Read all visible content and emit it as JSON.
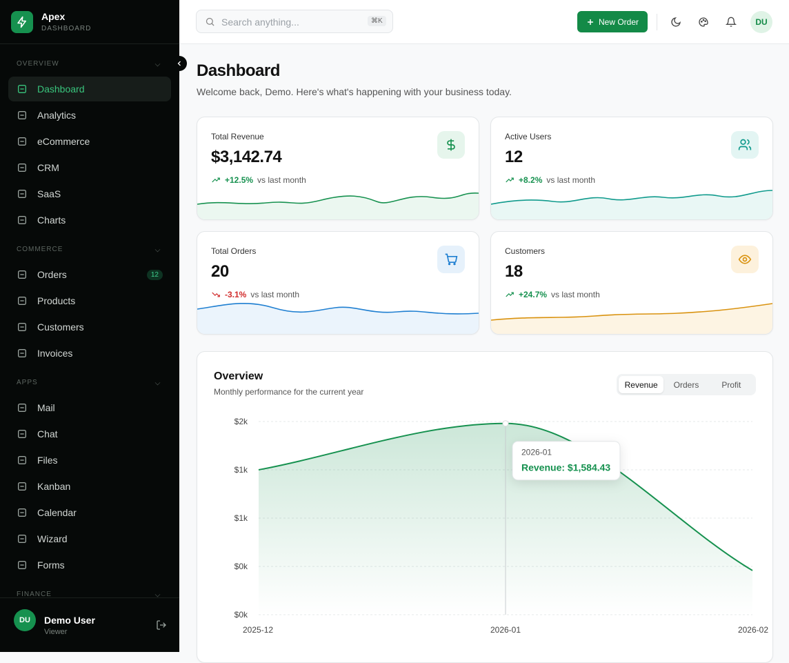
{
  "sidebar": {
    "brand": {
      "name": "Apex",
      "subtitle": "DASHBOARD"
    },
    "sections": [
      {
        "title": "OVERVIEW",
        "items": [
          {
            "label": "Dashboard"
          },
          {
            "label": "Analytics"
          },
          {
            "label": "eCommerce"
          },
          {
            "label": "CRM"
          },
          {
            "label": "SaaS"
          },
          {
            "label": "Charts"
          }
        ]
      },
      {
        "title": "COMMERCE",
        "items": [
          {
            "label": "Orders",
            "badge": "12"
          },
          {
            "label": "Products"
          },
          {
            "label": "Customers"
          },
          {
            "label": "Invoices"
          }
        ]
      },
      {
        "title": "APPS",
        "items": [
          {
            "label": "Mail"
          },
          {
            "label": "Chat"
          },
          {
            "label": "Files"
          },
          {
            "label": "Kanban"
          },
          {
            "label": "Calendar"
          },
          {
            "label": "Wizard"
          },
          {
            "label": "Forms"
          }
        ]
      },
      {
        "title": "FINANCE",
        "items": []
      }
    ],
    "user": {
      "initials": "DU",
      "name": "Demo User",
      "role": "Viewer"
    }
  },
  "header": {
    "search_placeholder": "Search anything...",
    "shortcut": "⌘K",
    "button": "New Order",
    "avatar": "DU"
  },
  "page": {
    "title": "Dashboard",
    "subtitle": "Welcome back, Demo. Here's what's happening with your business today."
  },
  "stats": [
    {
      "label": "Total Revenue",
      "value": "$3,142.74",
      "change": "+12.5%",
      "compare": "vs last month"
    },
    {
      "label": "Active Users",
      "value": "12",
      "change": "+8.2%",
      "compare": "vs last month"
    },
    {
      "label": "Total Orders",
      "value": "20",
      "change": "-3.1%",
      "compare": "vs last month"
    },
    {
      "label": "Customers",
      "value": "18",
      "change": "+24.7%",
      "compare": "vs last month"
    }
  ],
  "overview": {
    "title": "Overview",
    "subtitle": "Monthly performance for the current year",
    "tabs": [
      "Revenue",
      "Orders",
      "Profit"
    ],
    "chart_data": {
      "type": "line",
      "categories": [
        "2025-12",
        "2026-01",
        "2026-02"
      ],
      "values": [
        1200,
        1584.43,
        366
      ],
      "color": "#16914f",
      "ylim": [
        0,
        1600
      ],
      "yticks": [
        {
          "value": 0,
          "label": "$0k"
        },
        {
          "value": 400,
          "label": "$0k"
        },
        {
          "value": 800,
          "label": "$1k"
        },
        {
          "value": 1200,
          "label": "$1k"
        },
        {
          "value": 1600,
          "label": "$2k"
        }
      ],
      "grid": true,
      "tooltip": {
        "title": "2026-01",
        "label": "Revenue: $1,584.43"
      }
    }
  }
}
